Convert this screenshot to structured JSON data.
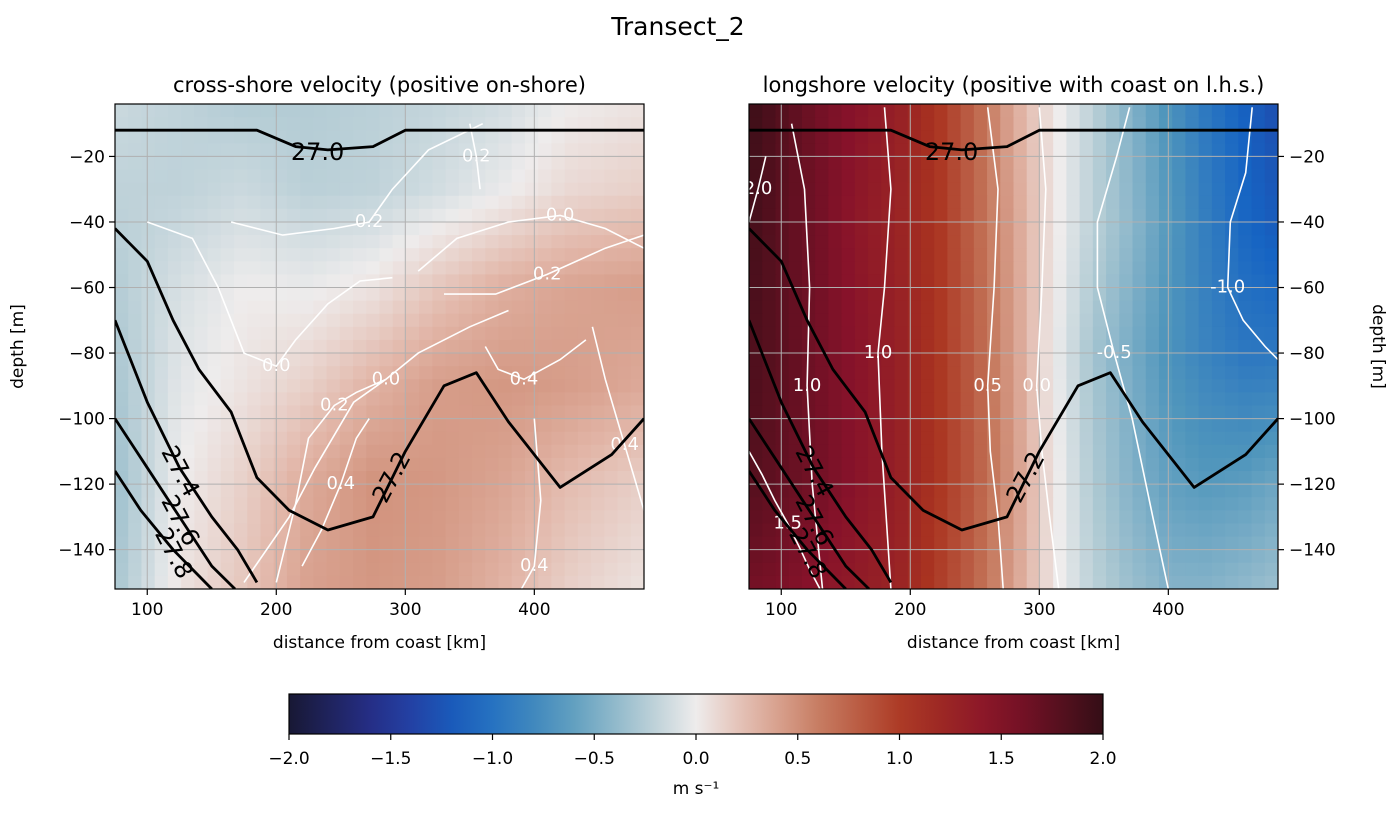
{
  "figure": {
    "suptitle": "Transect_2"
  },
  "chart_data": [
    {
      "type": "heatmap",
      "id": "cross",
      "title": "cross-shore velocity (positive on-shore)",
      "xlabel": "distance from coast [km]",
      "ylabel": "depth [m]",
      "xlim": [
        75,
        485
      ],
      "ylim": [
        -152,
        -4
      ],
      "xticks": [
        100,
        200,
        300,
        400
      ],
      "yticks": [
        -20,
        -40,
        -60,
        -80,
        -100,
        -120,
        -140
      ],
      "ytick_side": "left",
      "grid": true,
      "colormap": "balance",
      "vmin": -2.0,
      "vmax": 2.0,
      "velocity_field": {
        "x": [
          75,
          125,
          175,
          225,
          275,
          325,
          375,
          425,
          485
        ],
        "depth": [
          -4,
          -30,
          -60,
          -90,
          -120,
          -152
        ],
        "values": [
          [
            -0.15,
            -0.2,
            -0.25,
            -0.25,
            -0.22,
            -0.18,
            -0.12,
            0.0,
            0.05
          ],
          [
            -0.2,
            -0.2,
            -0.15,
            -0.22,
            -0.2,
            -0.12,
            -0.02,
            0.1,
            0.15
          ],
          [
            -0.25,
            -0.1,
            0.0,
            -0.02,
            0.05,
            0.2,
            0.32,
            0.38,
            0.42
          ],
          [
            -0.3,
            -0.05,
            0.05,
            0.15,
            0.3,
            0.42,
            0.45,
            0.42,
            0.35
          ],
          [
            -0.35,
            0.0,
            0.15,
            0.35,
            0.48,
            0.45,
            0.38,
            0.25,
            0.15
          ],
          [
            -0.3,
            0.05,
            0.2,
            0.4,
            0.45,
            0.42,
            0.3,
            0.15,
            0.05
          ]
        ]
      },
      "isopycnals": [
        {
          "label": "27.0",
          "x": [
            75,
            185,
            215,
            240,
            275,
            300,
            485
          ],
          "depth": [
            -12,
            -12,
            -17,
            -18,
            -17,
            -12,
            -12
          ]
        },
        {
          "label": "27.2",
          "x": [
            75,
            100,
            120,
            140,
            165,
            185,
            210,
            240,
            275,
            300,
            330,
            355,
            380,
            420,
            460,
            485
          ],
          "depth": [
            -42,
            -52,
            -70,
            -85,
            -98,
            -118,
            -128,
            -134,
            -130,
            -110,
            -90,
            -86,
            -101,
            -121,
            -111,
            -100
          ]
        },
        {
          "label": "27.4",
          "x": [
            75,
            100,
            125,
            150,
            170,
            185
          ],
          "depth": [
            -70,
            -95,
            -115,
            -130,
            -140,
            -150
          ]
        },
        {
          "label": "27.6",
          "x": [
            75,
            100,
            125,
            150,
            168
          ],
          "depth": [
            -100,
            -115,
            -130,
            -145,
            -152
          ]
        },
        {
          "label": "27.8",
          "x": [
            75,
            95,
            120,
            140,
            150
          ],
          "depth": [
            -116,
            -128,
            -140,
            -148,
            -152
          ]
        }
      ],
      "velocity_contours": [
        {
          "label": "0.2",
          "x": [
            350,
            355,
            358
          ],
          "depth": [
            -10,
            -20,
            -30
          ]
        },
        {
          "label": "0.2",
          "x": [
            165,
            205,
            245,
            272,
            290,
            318,
            360
          ],
          "depth": [
            -40,
            -44,
            -42,
            -40,
            -30,
            -18,
            -10
          ]
        },
        {
          "label": "0.2",
          "x": [
            330,
            370,
            410,
            455,
            485
          ],
          "depth": [
            -62,
            -62,
            -56,
            -48,
            -44
          ]
        },
        {
          "label": "0.0",
          "x": [
            100,
            135,
            155,
            175,
            200,
            215,
            240,
            265,
            290
          ],
          "depth": [
            -40,
            -45,
            -60,
            -80,
            -84,
            -76,
            -65,
            -58,
            -57
          ]
        },
        {
          "label": "0.0",
          "x": [
            310,
            340,
            380,
            420,
            455,
            485
          ],
          "depth": [
            -55,
            -45,
            -40,
            -38,
            -42,
            -48
          ]
        },
        {
          "label": "0.0",
          "x": [
            175,
            210,
            230,
            260,
            285,
            310,
            330,
            350,
            380
          ],
          "depth": [
            -150,
            -130,
            -115,
            -95,
            -88,
            -80,
            -76,
            -72,
            -67
          ]
        },
        {
          "label": "0.2",
          "x": [
            200,
            215,
            225,
            245,
            262,
            285
          ],
          "depth": [
            -150,
            -126,
            -106,
            -96,
            -92,
            -88
          ]
        },
        {
          "label": "0.4",
          "x": [
            220,
            235,
            250,
            262,
            272
          ],
          "depth": [
            -145,
            -134,
            -120,
            -106,
            -100
          ]
        },
        {
          "label": "0.4",
          "x": [
            445,
            455,
            470,
            485
          ],
          "depth": [
            -72,
            -88,
            -108,
            -128
          ]
        },
        {
          "label": "0.4",
          "x": [
            362,
            372,
            392,
            420,
            440
          ],
          "depth": [
            -78,
            -85,
            -88,
            -82,
            -76
          ]
        },
        {
          "label": "0.4",
          "x": [
            400,
            405,
            400,
            390
          ],
          "depth": [
            -100,
            -125,
            -145,
            -152
          ]
        }
      ]
    },
    {
      "type": "heatmap",
      "id": "long",
      "title": "longshore velocity (positive with coast on l.h.s.)",
      "xlabel": "distance from coast [km]",
      "ylabel": "depth [m]",
      "xlim": [
        75,
        485
      ],
      "ylim": [
        -152,
        -4
      ],
      "xticks": [
        100,
        200,
        300,
        400
      ],
      "yticks": [
        -20,
        -40,
        -60,
        -80,
        -100,
        -120,
        -140
      ],
      "ytick_side": "right",
      "grid": true,
      "colormap": "balance",
      "vmin": -2.0,
      "vmax": 2.0,
      "velocity_field": {
        "x": [
          75,
          100,
          130,
          160,
          190,
          220,
          250,
          280,
          310,
          340,
          370,
          400,
          430,
          460,
          485
        ],
        "depth": [
          -4,
          -40,
          -80,
          -120,
          -152
        ],
        "values": [
          [
            1.95,
            1.8,
            1.6,
            1.45,
            1.3,
            1.05,
            0.75,
            0.35,
            0.05,
            -0.2,
            -0.45,
            -0.7,
            -0.95,
            -1.15,
            -1.3
          ],
          [
            1.9,
            1.75,
            1.6,
            1.4,
            1.25,
            1.05,
            0.75,
            0.4,
            0.05,
            -0.2,
            -0.4,
            -0.65,
            -0.9,
            -1.1,
            -1.2
          ],
          [
            1.85,
            1.75,
            1.6,
            1.45,
            1.3,
            1.05,
            0.78,
            0.42,
            0.02,
            -0.3,
            -0.5,
            -0.7,
            -0.85,
            -0.95,
            -0.95
          ],
          [
            1.8,
            1.7,
            1.6,
            1.45,
            1.3,
            1.05,
            0.8,
            0.45,
            0.05,
            -0.25,
            -0.45,
            -0.6,
            -0.65,
            -0.62,
            -0.55
          ],
          [
            1.6,
            1.55,
            1.45,
            1.35,
            1.25,
            1.0,
            0.75,
            0.4,
            0.05,
            -0.2,
            -0.35,
            -0.45,
            -0.45,
            -0.4,
            -0.35
          ]
        ]
      },
      "isopycnals": [
        {
          "label": "27.0",
          "x": [
            75,
            185,
            215,
            240,
            275,
            300,
            485
          ],
          "depth": [
            -12,
            -12,
            -17,
            -18,
            -17,
            -12,
            -12
          ]
        },
        {
          "label": "27.2",
          "x": [
            75,
            100,
            120,
            140,
            165,
            185,
            210,
            240,
            275,
            300,
            330,
            355,
            380,
            420,
            460,
            485
          ],
          "depth": [
            -42,
            -52,
            -70,
            -85,
            -98,
            -118,
            -128,
            -134,
            -130,
            -110,
            -90,
            -86,
            -101,
            -121,
            -111,
            -100
          ]
        },
        {
          "label": "27.4",
          "x": [
            75,
            100,
            125,
            150,
            170,
            185
          ],
          "depth": [
            -70,
            -95,
            -115,
            -130,
            -140,
            -150
          ]
        },
        {
          "label": "27.6",
          "x": [
            75,
            100,
            125,
            150,
            168
          ],
          "depth": [
            -100,
            -115,
            -130,
            -145,
            -152
          ]
        },
        {
          "label": "27.8",
          "x": [
            75,
            95,
            120,
            140,
            150
          ],
          "depth": [
            -116,
            -128,
            -140,
            -148,
            -152
          ]
        }
      ],
      "velocity_contours": [
        {
          "label": "1.0",
          "x": [
            108,
            118,
            122,
            120,
            124,
            132
          ],
          "depth": [
            -10,
            -30,
            -60,
            -90,
            -120,
            -152
          ]
        },
        {
          "label": "1.0",
          "x": [
            180,
            185,
            180,
            175,
            178,
            185
          ],
          "depth": [
            -5,
            -30,
            -60,
            -80,
            -110,
            -152
          ]
        },
        {
          "label": "0.5",
          "x": [
            260,
            268,
            265,
            260,
            262,
            268,
            272
          ],
          "depth": [
            -5,
            -30,
            -60,
            -90,
            -110,
            -130,
            -152
          ]
        },
        {
          "label": "0.0",
          "x": [
            300,
            305,
            302,
            298,
            302,
            308,
            315
          ],
          "depth": [
            -5,
            -30,
            -60,
            -90,
            -110,
            -130,
            -152
          ]
        },
        {
          "label": "-0.5",
          "x": [
            370,
            360,
            345,
            345,
            358,
            372,
            388,
            400
          ],
          "depth": [
            -5,
            -20,
            -40,
            -60,
            -80,
            -100,
            -130,
            -152
          ]
        },
        {
          "label": "-1.0",
          "x": [
            465,
            460,
            448,
            446,
            458,
            475,
            485
          ],
          "depth": [
            -5,
            -25,
            -40,
            -60,
            -70,
            -78,
            -82
          ]
        },
        {
          "label": "1.5",
          "x": [
            75,
            85,
            95,
            105,
            115,
            122,
            130
          ],
          "depth": [
            -110,
            -117,
            -125,
            -132,
            -140,
            -146,
            -152
          ]
        },
        {
          "label": "2.0",
          "x": [
            75,
            82,
            88
          ],
          "depth": [
            -40,
            -30,
            -20
          ]
        }
      ]
    }
  ],
  "colorbar": {
    "min": -2.0,
    "max": 2.0,
    "ticks": [
      -2.0,
      -1.5,
      -1.0,
      -0.5,
      0.0,
      0.5,
      1.0,
      1.5,
      2.0
    ],
    "tick_labels": [
      "−2.0",
      "−1.5",
      "−1.0",
      "−0.5",
      "0.0",
      "0.5",
      "1.0",
      "1.5",
      "2.0"
    ],
    "label": "m s⁻¹"
  }
}
